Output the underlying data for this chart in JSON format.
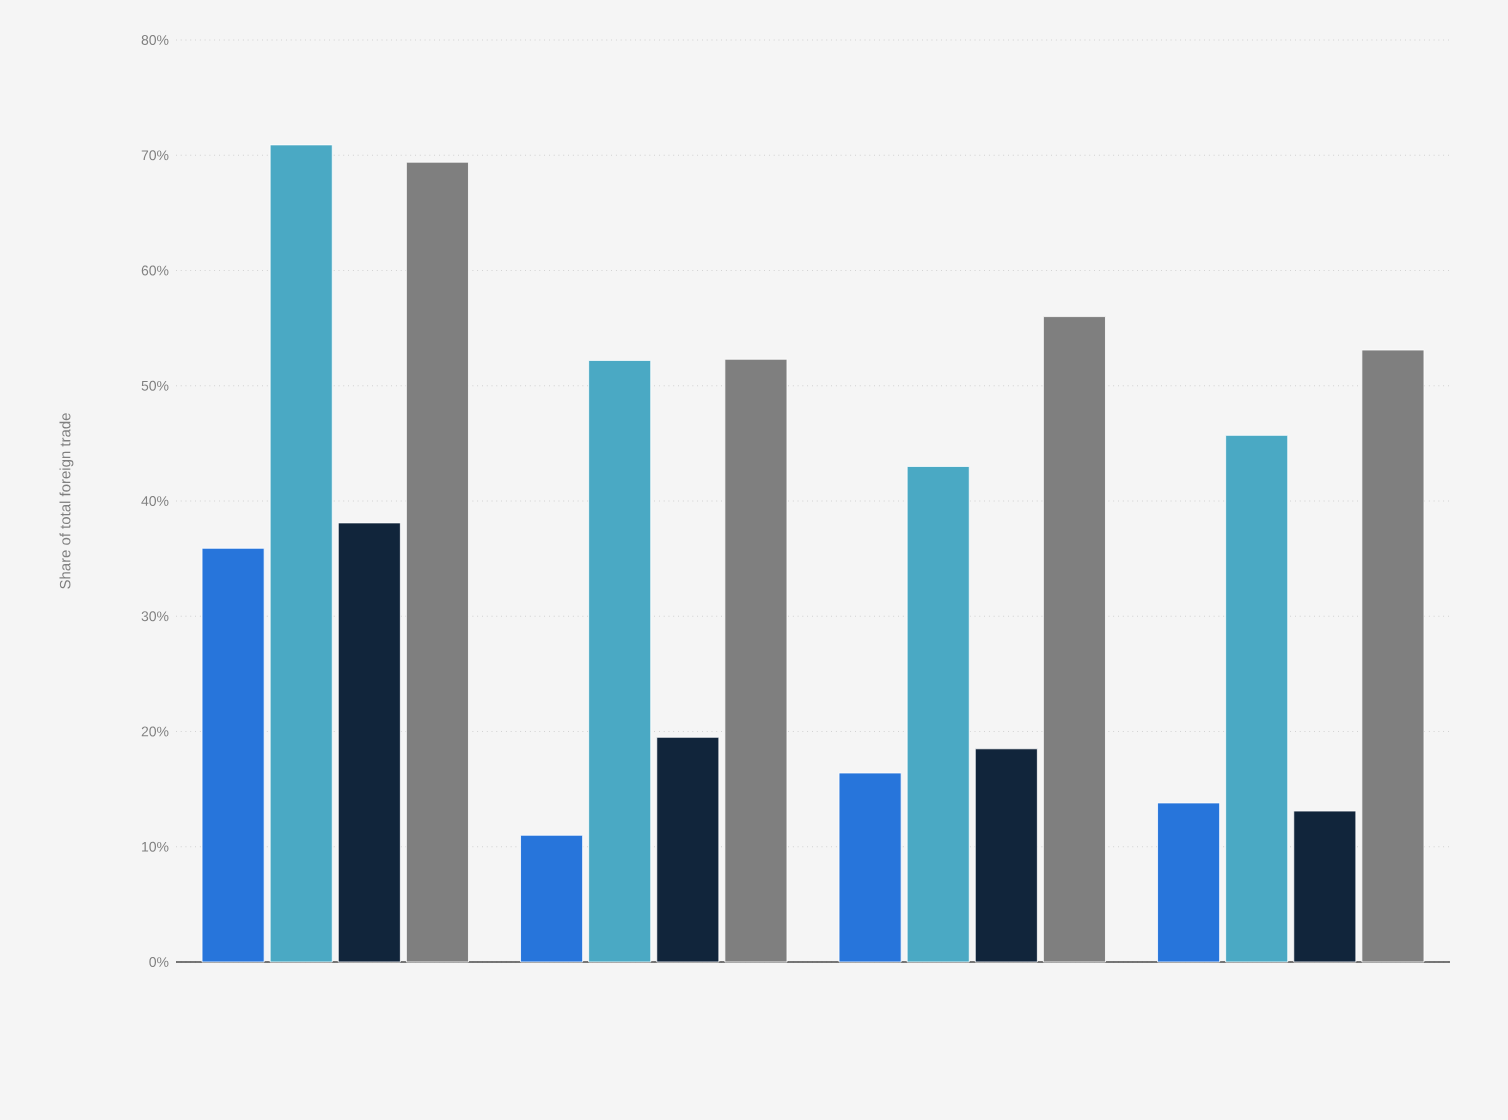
{
  "chart_data": {
    "type": "bar",
    "ylabel": "Share of total foreign trade",
    "categories": [
      null,
      null,
      null,
      null
    ],
    "series": [
      {
        "color": "#2775db",
        "values": [
          35.9,
          11.0,
          16.4,
          13.8
        ]
      },
      {
        "color": "#4aa9c4",
        "values": [
          70.9,
          52.2,
          43.0,
          45.7
        ]
      },
      {
        "color": "#11253b",
        "values": [
          38.1,
          19.5,
          18.5,
          13.1
        ]
      },
      {
        "color": "#7f7f7f",
        "values": [
          69.4,
          52.3,
          56.0,
          53.1
        ]
      }
    ],
    "ylim": [
      0,
      80
    ],
    "yticks": [
      {
        "value": 0,
        "label": "0%"
      },
      {
        "value": 10,
        "label": "10%"
      },
      {
        "value": 20,
        "label": "20%"
      },
      {
        "value": 30,
        "label": "30%"
      },
      {
        "value": 40,
        "label": "40%"
      },
      {
        "value": 50,
        "label": "50%"
      },
      {
        "value": 60,
        "label": "60%"
      },
      {
        "value": 70,
        "label": "70%"
      },
      {
        "value": 80,
        "label": "80%"
      }
    ],
    "grid": "y"
  }
}
